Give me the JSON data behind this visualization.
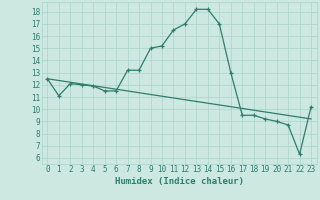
{
  "xlabel": "Humidex (Indice chaleur)",
  "x_values": [
    0,
    1,
    2,
    3,
    4,
    5,
    6,
    7,
    8,
    9,
    10,
    11,
    12,
    13,
    14,
    15,
    16,
    17,
    18,
    19,
    20,
    21,
    22,
    23
  ],
  "y_values": [
    12.5,
    11.1,
    12.1,
    12.0,
    11.9,
    11.5,
    11.5,
    13.2,
    13.2,
    15.0,
    15.2,
    16.5,
    17.0,
    18.2,
    18.2,
    17.0,
    13.0,
    9.5,
    9.5,
    9.2,
    9.0,
    8.7,
    6.3,
    10.2
  ],
  "trend_x": [
    0,
    23
  ],
  "trend_y": [
    12.5,
    9.2
  ],
  "line_color": "#2e7d6e",
  "bg_color": "#cce8e0",
  "grid_color": "#aad4ca",
  "ylim": [
    5.5,
    18.8
  ],
  "xlim": [
    -0.5,
    23.5
  ],
  "yticks": [
    6,
    7,
    8,
    9,
    10,
    11,
    12,
    13,
    14,
    15,
    16,
    17,
    18
  ],
  "xticks": [
    0,
    1,
    2,
    3,
    4,
    5,
    6,
    7,
    8,
    9,
    10,
    11,
    12,
    13,
    14,
    15,
    16,
    17,
    18,
    19,
    20,
    21,
    22,
    23
  ],
  "font_color": "#2e7d6e",
  "tick_fontsize": 5.5,
  "label_fontsize": 6.5
}
